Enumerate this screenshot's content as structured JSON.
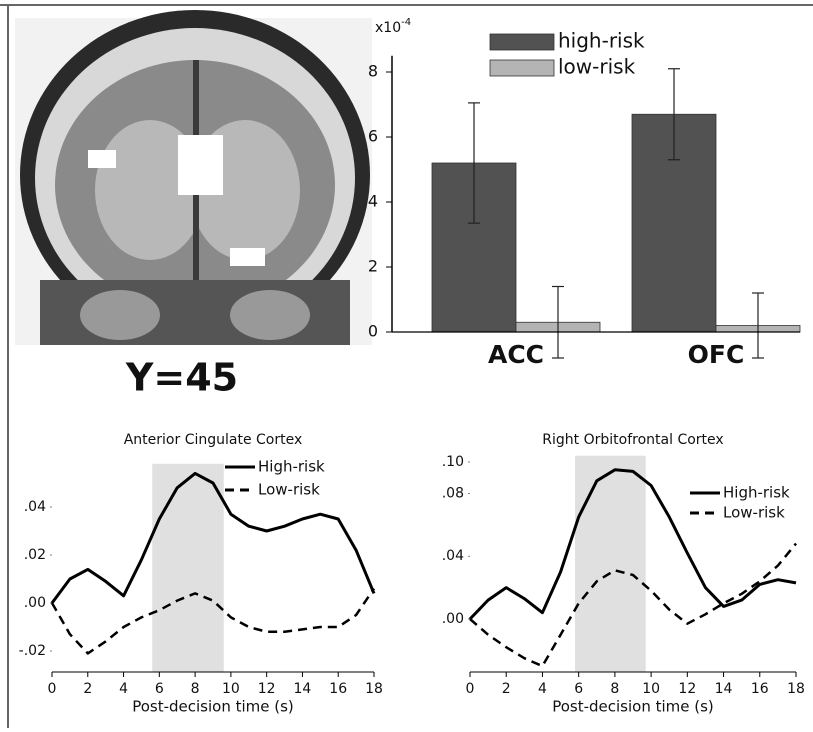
{
  "image": {
    "label": "Y=45"
  },
  "chart_data": [
    {
      "type": "bar",
      "y_scale_base": "x10",
      "y_scale_exponent": "-4",
      "categories": [
        "ACC",
        "OFC"
      ],
      "series": [
        {
          "name": "high-risk",
          "color": "#525252",
          "values": [
            5.2,
            6.7
          ],
          "errors": [
            1.85,
            1.4
          ]
        },
        {
          "name": "low-risk",
          "color": "#b4b4b4",
          "values": [
            0.3,
            0.2
          ],
          "errors": [
            1.1,
            1.0
          ]
        }
      ],
      "ylim": [
        -1,
        8.5
      ],
      "yticks": [
        0,
        2,
        4,
        6,
        8
      ]
    },
    {
      "type": "line",
      "title": "Anterior Cingulate Cortex",
      "xlabel": "Post-decision time (s)",
      "x": [
        0,
        1,
        2,
        3,
        4,
        5,
        6,
        7,
        8,
        9,
        10,
        11,
        12,
        13,
        14,
        15,
        16,
        17,
        18
      ],
      "series": [
        {
          "name": "High-risk",
          "color": "#000000",
          "dash": false,
          "values": [
            0.0,
            0.01,
            0.014,
            0.009,
            0.003,
            0.018,
            0.035,
            0.048,
            0.054,
            0.05,
            0.037,
            0.032,
            0.03,
            0.032,
            0.035,
            0.037,
            0.035,
            0.022,
            0.004
          ]
        },
        {
          "name": "Low-risk",
          "color": "#000000",
          "dash": true,
          "values": [
            0.0,
            -0.013,
            -0.021,
            -0.016,
            -0.01,
            -0.006,
            -0.003,
            0.001,
            0.004,
            0.001,
            -0.006,
            -0.01,
            -0.012,
            -0.012,
            -0.011,
            -0.01,
            -0.01,
            -0.005,
            0.006
          ]
        }
      ],
      "shaded_x": [
        5.6,
        9.6
      ],
      "xlim": [
        0,
        18
      ],
      "xticks": [
        0,
        2,
        4,
        6,
        8,
        10,
        12,
        14,
        16,
        18
      ],
      "ylim": [
        -0.025,
        0.058
      ],
      "yticks": [
        {
          "value": 0.04,
          "label": ".04"
        },
        {
          "value": 0.02,
          "label": ".02"
        },
        {
          "value": 0.0,
          "label": ".00"
        },
        {
          "value": -0.02,
          "label": "-.02"
        }
      ]
    },
    {
      "type": "line",
      "title": "Right Orbitofrontal Cortex",
      "xlabel": "Post-decision time (s)",
      "x": [
        0,
        1,
        2,
        3,
        4,
        5,
        6,
        7,
        8,
        9,
        10,
        11,
        12,
        13,
        14,
        15,
        16,
        17,
        18
      ],
      "series": [
        {
          "name": "High-risk",
          "color": "#000000",
          "dash": false,
          "values": [
            0.0,
            0.012,
            0.02,
            0.013,
            0.004,
            0.03,
            0.065,
            0.088,
            0.095,
            0.094,
            0.085,
            0.065,
            0.042,
            0.02,
            0.008,
            0.012,
            0.022,
            0.025,
            0.023
          ]
        },
        {
          "name": "Low-risk",
          "color": "#000000",
          "dash": true,
          "values": [
            0.0,
            -0.01,
            -0.018,
            -0.025,
            -0.03,
            -0.01,
            0.01,
            0.024,
            0.031,
            0.028,
            0.018,
            0.006,
            -0.003,
            0.003,
            0.01,
            0.016,
            0.024,
            0.034,
            0.048
          ]
        }
      ],
      "shaded_x": [
        5.8,
        9.7
      ],
      "xlim": [
        0,
        18
      ],
      "xticks": [
        0,
        2,
        4,
        6,
        8,
        10,
        12,
        14,
        16,
        18
      ],
      "ylim": [
        -0.032,
        0.104
      ],
      "yticks": [
        {
          "value": 0.1,
          "label": ".10"
        },
        {
          "value": 0.08,
          "label": ".08"
        },
        {
          "value": 0.04,
          "label": ".04"
        },
        {
          "value": 0.0,
          "label": ".00"
        }
      ]
    }
  ]
}
